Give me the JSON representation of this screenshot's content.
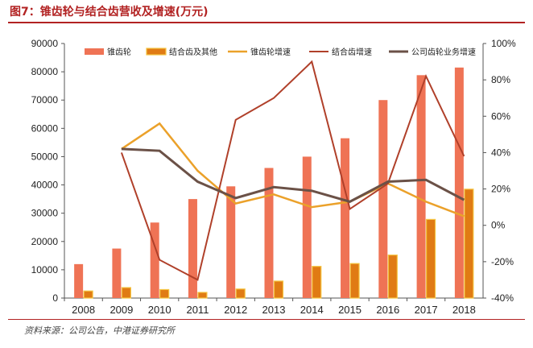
{
  "header": {
    "title": "图7：锥齿轮与结合齿营收及增速(万元)"
  },
  "footer": {
    "source": "资料来源：公司公告，中港证券研究所"
  },
  "colors": {
    "bevel_revenue": "#ef7355",
    "combo_revenue": "#e07b14",
    "bevel_growth": "#eba12a",
    "combo_growth": "#b0402a",
    "company_growth": "#6b5147",
    "title_red": "#b22222"
  },
  "chart_data": {
    "type": "bar",
    "categories": [
      "2008",
      "2009",
      "2010",
      "2011",
      "2012",
      "2013",
      "2014",
      "2015",
      "2016",
      "2017",
      "2018"
    ],
    "y_left": {
      "range": [
        0,
        90000
      ],
      "ticks": [
        "0",
        "10000",
        "20000",
        "30000",
        "40000",
        "50000",
        "60000",
        "70000",
        "80000",
        "90000"
      ]
    },
    "y_right": {
      "range": [
        -40,
        100
      ],
      "unit": "%",
      "ticks": [
        "-40%",
        "-20%",
        "0%",
        "20%",
        "40%",
        "60%",
        "80%",
        "100%"
      ]
    },
    "series": [
      {
        "name": "锥齿轮",
        "kind": "bar",
        "axis": "left",
        "values": [
          12000,
          17500,
          26700,
          35000,
          39500,
          46000,
          50000,
          56500,
          70000,
          78800,
          81500
        ]
      },
      {
        "name": "结合齿及其他",
        "kind": "bar",
        "axis": "left",
        "values": [
          2500,
          3700,
          3000,
          2000,
          3200,
          6000,
          11200,
          12200,
          15200,
          27800,
          38500
        ]
      },
      {
        "name": "锥齿轮增速",
        "kind": "line",
        "axis": "right",
        "values": [
          null,
          42,
          56,
          30,
          12,
          17,
          10,
          13,
          23,
          13,
          5
        ]
      },
      {
        "name": "结合齿增速",
        "kind": "line",
        "axis": "right",
        "values": [
          null,
          40,
          -19,
          -30,
          58,
          70,
          90,
          9,
          23,
          82,
          38
        ]
      },
      {
        "name": "公司齿轮业务增速",
        "kind": "line",
        "axis": "right",
        "values": [
          null,
          42,
          41,
          24,
          15,
          21,
          19,
          13,
          24,
          25,
          14
        ]
      }
    ],
    "legend": "top"
  }
}
